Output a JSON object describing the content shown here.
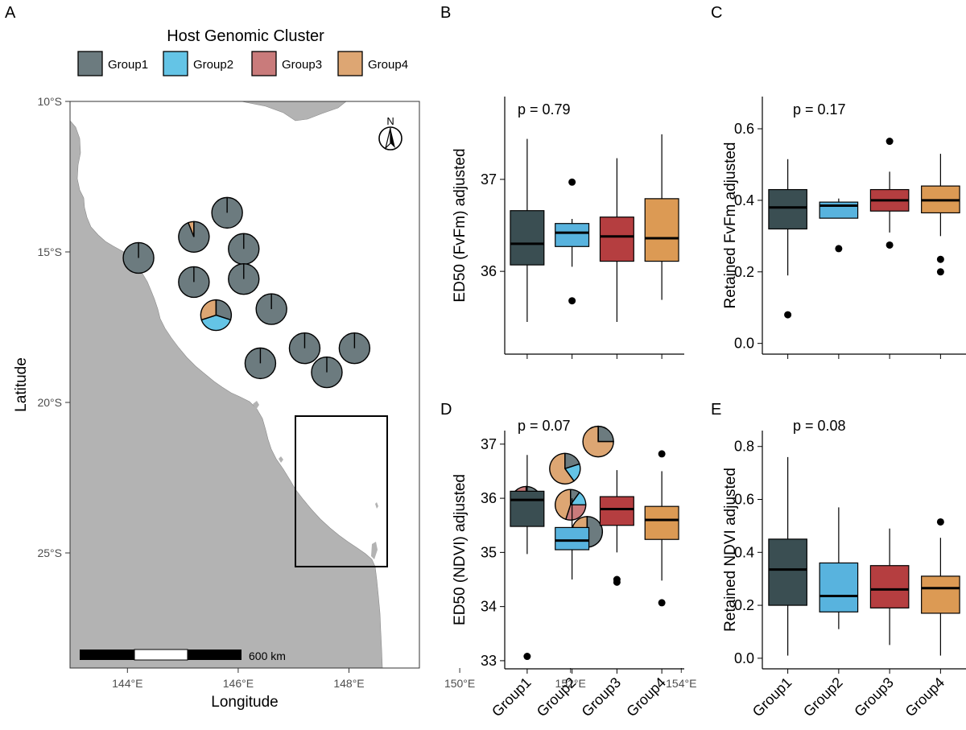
{
  "panel_letters": [
    "A",
    "B",
    "C",
    "D",
    "E"
  ],
  "legend": {
    "title": "Host Genomic Cluster",
    "items": [
      {
        "label": "Group1",
        "color": "#6c7b7f"
      },
      {
        "label": "Group2",
        "color": "#64c4e6"
      },
      {
        "label": "Group3",
        "color": "#c97b7b"
      },
      {
        "label": "Group4",
        "color": "#dda673"
      }
    ]
  },
  "map": {
    "xlabel": "Longitude",
    "ylabel": "Latitude",
    "x_ticks": [
      {
        "value": 144,
        "label": "144°E"
      },
      {
        "value": 146,
        "label": "146°E"
      },
      {
        "value": 148,
        "label": "148°E"
      },
      {
        "value": 150,
        "label": "150°E"
      },
      {
        "value": 152,
        "label": "152°E"
      },
      {
        "value": 154,
        "label": "154°E"
      }
    ],
    "y_ticks": [
      {
        "value": -10,
        "label": "10°S"
      },
      {
        "value": -15,
        "label": "15°S"
      },
      {
        "value": -20,
        "label": "20°S"
      },
      {
        "value": -25,
        "label": "25°S"
      }
    ],
    "scale_bar_label": "600 km",
    "north_label": "N",
    "land_color": "#b3b3b3",
    "sites": [
      {
        "lon": 145.8,
        "lat": -13.7,
        "shares": [
          1,
          0,
          0,
          0
        ]
      },
      {
        "lon": 145.2,
        "lat": -14.5,
        "shares": [
          0.94,
          0,
          0,
          0.06
        ]
      },
      {
        "lon": 146.1,
        "lat": -14.9,
        "shares": [
          1,
          0,
          0,
          0
        ]
      },
      {
        "lon": 144.2,
        "lat": -15.2,
        "shares": [
          1,
          0,
          0,
          0
        ]
      },
      {
        "lon": 146.1,
        "lat": -15.9,
        "shares": [
          1,
          0,
          0,
          0
        ]
      },
      {
        "lon": 145.2,
        "lat": -16.0,
        "shares": [
          1,
          0,
          0,
          0
        ]
      },
      {
        "lon": 146.6,
        "lat": -16.9,
        "shares": [
          1,
          0,
          0,
          0
        ]
      },
      {
        "lon": 145.6,
        "lat": -17.1,
        "shares": [
          0.3,
          0.4,
          0,
          0.3
        ]
      },
      {
        "lon": 147.2,
        "lat": -18.2,
        "shares": [
          1,
          0,
          0,
          0
        ]
      },
      {
        "lon": 148.1,
        "lat": -18.2,
        "shares": [
          1,
          0,
          0,
          0
        ]
      },
      {
        "lon": 146.4,
        "lat": -18.7,
        "shares": [
          1,
          0,
          0,
          0
        ]
      },
      {
        "lon": 147.6,
        "lat": -19.0,
        "shares": [
          1,
          0,
          0,
          0
        ]
      },
      {
        "lon": 152.5,
        "lat": -21.3,
        "shares": [
          0.25,
          0,
          0,
          0.75
        ]
      },
      {
        "lon": 151.9,
        "lat": -22.2,
        "shares": [
          0.2,
          0.2,
          0,
          0.6
        ]
      },
      {
        "lon": 151.2,
        "lat": -23.3,
        "shares": [
          0.25,
          0.25,
          0.5,
          0
        ]
      },
      {
        "lon": 152.0,
        "lat": -23.4,
        "shares": [
          0.1,
          0.15,
          0.3,
          0.45
        ]
      },
      {
        "lon": 152.3,
        "lat": -24.3,
        "shares": [
          0.55,
          0,
          0.25,
          0.2
        ]
      }
    ]
  },
  "chart_data": [
    {
      "type": "box",
      "panel": "B",
      "ylabel": "ED50 (FvFm) adjusted",
      "annotation": "p = 0.79",
      "ylim": [
        35.1,
        37.9
      ],
      "yticks": [
        36,
        37
      ],
      "categories": [
        "Group1",
        "Group2",
        "Group3",
        "Group4"
      ],
      "boxes": [
        {
          "min": 35.45,
          "q1": 36.07,
          "median": 36.3,
          "q3": 36.66,
          "max": 37.44,
          "outliers": []
        },
        {
          "min": 36.05,
          "q1": 36.27,
          "median": 36.42,
          "q3": 36.52,
          "max": 36.57,
          "outliers": [
            36.97,
            35.68
          ]
        },
        {
          "min": 35.45,
          "q1": 36.11,
          "median": 36.38,
          "q3": 36.59,
          "max": 37.23,
          "outliers": []
        },
        {
          "min": 35.69,
          "q1": 36.11,
          "median": 36.36,
          "q3": 36.79,
          "max": 37.49,
          "outliers": []
        }
      ]
    },
    {
      "type": "box",
      "panel": "C",
      "ylabel": "Retained FvFm adjusted",
      "annotation": "p = 0.17",
      "ylim": [
        -0.03,
        0.69
      ],
      "yticks": [
        0.0,
        0.2,
        0.4,
        0.6
      ],
      "categories": [
        "Group1",
        "Group2",
        "Group3",
        "Group4"
      ],
      "boxes": [
        {
          "min": 0.19,
          "q1": 0.32,
          "median": 0.38,
          "q3": 0.43,
          "max": 0.515,
          "outliers": [
            0.08
          ]
        },
        {
          "min": 0.35,
          "q1": 0.35,
          "median": 0.385,
          "q3": 0.395,
          "max": 0.405,
          "outliers": [
            0.265
          ]
        },
        {
          "min": 0.31,
          "q1": 0.37,
          "median": 0.4,
          "q3": 0.43,
          "max": 0.48,
          "outliers": [
            0.565,
            0.275
          ]
        },
        {
          "min": 0.3,
          "q1": 0.365,
          "median": 0.4,
          "q3": 0.44,
          "max": 0.53,
          "outliers": [
            0.235,
            0.2
          ]
        }
      ]
    },
    {
      "type": "box",
      "panel": "D",
      "ylabel": "ED50 (NDVI) adjusted",
      "annotation": "p = 0.07",
      "ylim": [
        32.85,
        37.25
      ],
      "yticks": [
        33,
        34,
        35,
        36,
        37
      ],
      "categories": [
        "Group1",
        "Group2",
        "Group3",
        "Group4"
      ],
      "boxes": [
        {
          "min": 34.97,
          "q1": 35.48,
          "median": 35.97,
          "q3": 36.13,
          "max": 36.8,
          "outliers": [
            33.08
          ]
        },
        {
          "min": 34.5,
          "q1": 35.05,
          "median": 35.22,
          "q3": 35.46,
          "max": 36.0,
          "outliers": []
        },
        {
          "min": 35.0,
          "q1": 35.5,
          "median": 35.8,
          "q3": 36.03,
          "max": 36.52,
          "outliers": [
            34.5,
            34.45
          ]
        },
        {
          "min": 34.48,
          "q1": 35.24,
          "median": 35.6,
          "q3": 35.85,
          "max": 36.5,
          "outliers": [
            36.82,
            34.07
          ]
        }
      ]
    },
    {
      "type": "box",
      "panel": "E",
      "ylabel": "Retained NDVI adjusted",
      "annotation": "p = 0.08",
      "ylim": [
        -0.04,
        0.86
      ],
      "yticks": [
        0.0,
        0.2,
        0.4,
        0.6,
        0.8
      ],
      "categories": [
        "Group1",
        "Group2",
        "Group3",
        "Group4"
      ],
      "boxes": [
        {
          "min": 0.01,
          "q1": 0.2,
          "median": 0.335,
          "q3": 0.45,
          "max": 0.76,
          "outliers": []
        },
        {
          "min": 0.11,
          "q1": 0.175,
          "median": 0.235,
          "q3": 0.36,
          "max": 0.57,
          "outliers": []
        },
        {
          "min": 0.05,
          "q1": 0.19,
          "median": 0.26,
          "q3": 0.35,
          "max": 0.49,
          "outliers": []
        },
        {
          "min": 0.01,
          "q1": 0.17,
          "median": 0.265,
          "q3": 0.31,
          "max": 0.455,
          "outliers": [
            0.515
          ]
        }
      ]
    }
  ],
  "box_colors": [
    "#3a4e52",
    "#58b3de",
    "#b53e40",
    "#dc9a54"
  ]
}
